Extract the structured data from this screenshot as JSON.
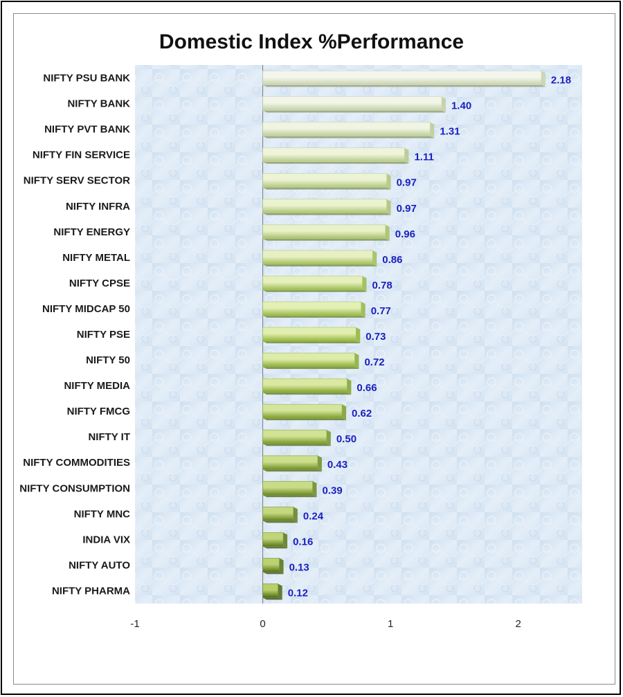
{
  "chart_data": {
    "type": "bar",
    "orientation": "horizontal",
    "title": "Domestic Index %Performance",
    "categories": [
      "NIFTY PSU BANK",
      "NIFTY BANK",
      "NIFTY PVT BANK",
      "NIFTY FIN SERVICE",
      "NIFTY SERV SECTOR",
      "NIFTY INFRA",
      "NIFTY ENERGY",
      "NIFTY METAL",
      "NIFTY CPSE",
      "NIFTY MIDCAP 50",
      "NIFTY PSE",
      "NIFTY 50",
      "NIFTY MEDIA",
      "NIFTY FMCG",
      "NIFTY IT",
      "NIFTY COMMODITIES",
      "NIFTY CONSUMPTION",
      "NIFTY MNC",
      "INDIA VIX",
      "NIFTY AUTO",
      "NIFTY PHARMA"
    ],
    "values": [
      2.18,
      1.4,
      1.31,
      1.11,
      0.97,
      0.97,
      0.96,
      0.86,
      0.78,
      0.77,
      0.73,
      0.72,
      0.66,
      0.62,
      0.5,
      0.43,
      0.39,
      0.24,
      0.16,
      0.13,
      0.12
    ],
    "value_labels": [
      "2.18",
      "1.40",
      "1.31",
      "1.11",
      "0.97",
      "0.97",
      "0.96",
      "0.86",
      "0.78",
      "0.77",
      "0.73",
      "0.72",
      "0.66",
      "0.62",
      "0.50",
      "0.43",
      "0.39",
      "0.24",
      "0.16",
      "0.13",
      "0.12"
    ],
    "xlim": [
      -1,
      2.5
    ],
    "xticks": [
      -1,
      0,
      1,
      2
    ],
    "xtick_labels": [
      "-1",
      "0",
      "1",
      "2"
    ],
    "xlabel": "",
    "ylabel": "",
    "grid": false,
    "legend": "none",
    "colors": {
      "bar_top_light": "#f4f6ee",
      "bar_top_dark": "#c8d2ad",
      "bar_mid_light": "#e2eeb0",
      "bar_mid_dark": "#8fb436",
      "bar_bottom_light": "#b8cf6a",
      "bar_bottom_dark": "#4e6a12",
      "value_label": "#1a1fbf",
      "plot_background": "#dce8f4"
    }
  }
}
